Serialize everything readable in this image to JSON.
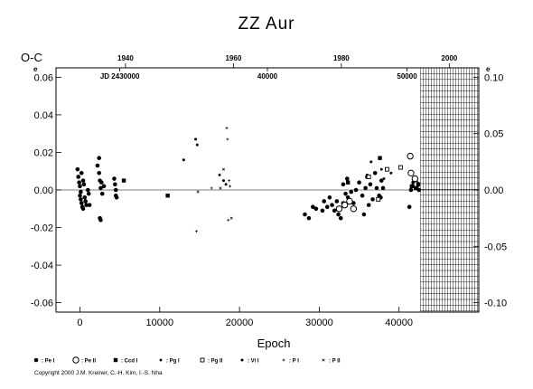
{
  "chart_data": {
    "type": "scatter",
    "title": "ZZ Aur",
    "xlabel": "Epoch",
    "ylabel": "O-C",
    "xlim": [
      -3000,
      50000
    ],
    "ylim": [
      -0.065,
      0.065
    ],
    "x_ticks": [
      "0",
      "10000",
      "20000",
      "30000",
      "40000"
    ],
    "x_tick_values": [
      0,
      10000,
      20000,
      30000,
      40000
    ],
    "y_ticks": [
      "-0.06",
      "-0.04",
      "-0.02",
      "0.00",
      "0.02",
      "0.04",
      "0.06"
    ],
    "y_tick_values": [
      -0.06,
      -0.04,
      -0.02,
      0.0,
      0.02,
      0.04,
      0.06
    ],
    "y2_ticks": [
      "-0.10",
      "-0.05",
      "0.00",
      "0.05",
      "0.10"
    ],
    "y2_tick_values": [
      -0.1,
      -0.05,
      0.0,
      0.05,
      0.1
    ],
    "y2_scale": 0.6,
    "top_years": [
      "1940",
      "1960",
      "1980",
      "2000"
    ],
    "top_year_epochs": [
      5710,
      19240,
      32770,
      46300
    ],
    "jd_labels": [
      "JD 2430000",
      "40000",
      "50000"
    ],
    "jd_label_epochs": [
      5000,
      23500,
      41000
    ],
    "y_exponent_mark": "e",
    "hatched_region": [
      42700,
      50000
    ],
    "zero_line": true,
    "series": [
      {
        "name": "Pe I",
        "marker": "filled-circle",
        "points": [
          [
            -300,
            0.011
          ],
          [
            -200,
            0.007
          ],
          [
            -100,
            0.004
          ],
          [
            0,
            0.002
          ],
          [
            100,
            -0.001
          ],
          [
            0,
            -0.003
          ],
          [
            100,
            -0.005
          ],
          [
            200,
            -0.007
          ],
          [
            300,
            -0.009
          ],
          [
            400,
            -0.01
          ],
          [
            200,
            0.009
          ],
          [
            400,
            0.005
          ],
          [
            500,
            0.003
          ],
          [
            600,
            -0.004
          ],
          [
            700,
            -0.006
          ],
          [
            800,
            -0.008
          ],
          [
            1000,
            0.0
          ],
          [
            1100,
            -0.002
          ],
          [
            1200,
            -0.008
          ],
          [
            2200,
            0.013
          ],
          [
            2400,
            0.017
          ],
          [
            2400,
            0.009
          ],
          [
            2500,
            0.005
          ],
          [
            2600,
            0.001
          ],
          [
            2700,
            0.004
          ],
          [
            2800,
            -0.002
          ],
          [
            3000,
            0.002
          ],
          [
            2500,
            -0.015
          ],
          [
            2600,
            -0.016
          ],
          [
            4300,
            0.006
          ],
          [
            4400,
            0.003
          ],
          [
            4500,
            0.0
          ],
          [
            4500,
            -0.003
          ],
          [
            4600,
            -0.004
          ],
          [
            28200,
            -0.013
          ],
          [
            28700,
            -0.015
          ],
          [
            29200,
            -0.009
          ],
          [
            29600,
            -0.01
          ],
          [
            30400,
            -0.011
          ],
          [
            30600,
            -0.006
          ],
          [
            31000,
            -0.009
          ],
          [
            31300,
            -0.004
          ],
          [
            31600,
            -0.008
          ],
          [
            31900,
            -0.011
          ],
          [
            32200,
            -0.006
          ],
          [
            32400,
            -0.013
          ],
          [
            32700,
            -0.015
          ],
          [
            33000,
            -0.007
          ],
          [
            33300,
            -0.002
          ],
          [
            33000,
            0.003
          ],
          [
            33500,
            0.006
          ],
          [
            33600,
            -0.004
          ],
          [
            34000,
            -0.001
          ],
          [
            34300,
            -0.007
          ],
          [
            34600,
            0.0
          ],
          [
            35000,
            0.004
          ],
          [
            35400,
            -0.003
          ],
          [
            35600,
            -0.013
          ],
          [
            35800,
            0.001
          ],
          [
            36000,
            0.007
          ],
          [
            36200,
            -0.008
          ],
          [
            36400,
            0.003
          ],
          [
            36700,
            -0.005
          ],
          [
            37000,
            0.009
          ],
          [
            37200,
            0.001
          ],
          [
            37500,
            -0.003
          ],
          [
            37800,
            0.005
          ],
          [
            38000,
            0.001
          ],
          [
            37700,
            -0.004
          ],
          [
            41500,
            0.0
          ],
          [
            41800,
            0.004
          ],
          [
            42000,
            0.002
          ],
          [
            42200,
            0.001
          ],
          [
            42400,
            0.003
          ],
          [
            42500,
            0.0
          ],
          [
            41300,
            -0.009
          ]
        ]
      },
      {
        "name": "Pe II",
        "marker": "open-circle",
        "points": [
          [
            32500,
            -0.01
          ],
          [
            33200,
            -0.008
          ],
          [
            33800,
            -0.006
          ],
          [
            34300,
            -0.01
          ],
          [
            41400,
            0.018
          ],
          [
            41500,
            0.009
          ],
          [
            42000,
            0.006
          ],
          [
            42200,
            0.003
          ]
        ]
      },
      {
        "name": "Ccd I",
        "marker": "filled-square",
        "points": [
          [
            5500,
            0.005
          ],
          [
            11000,
            -0.003
          ],
          [
            33600,
            0.004
          ],
          [
            37600,
            0.017
          ],
          [
            41600,
            0.002
          ],
          [
            42100,
            0.001
          ],
          [
            42400,
            0.003
          ]
        ]
      },
      {
        "name": "Pg I",
        "marker": "small-square",
        "points": [
          [
            36000,
            0.008
          ],
          [
            37800,
            0.011
          ],
          [
            38100,
            0.006
          ]
        ]
      },
      {
        "name": "Pg II",
        "marker": "open-square",
        "points": [
          [
            36200,
            0.007
          ],
          [
            37400,
            -0.005
          ],
          [
            38500,
            0.011
          ],
          [
            40200,
            0.012
          ]
        ]
      },
      {
        "name": "Vi I",
        "marker": "small-circle",
        "points": [
          [
            14500,
            0.027
          ],
          [
            14700,
            0.024
          ],
          [
            17500,
            0.008
          ],
          [
            18000,
            0.005
          ],
          [
            18300,
            0.003
          ],
          [
            13000,
            0.016
          ],
          [
            36500,
            0.015
          ],
          [
            39000,
            0.009
          ]
        ]
      },
      {
        "name": "P I",
        "marker": "plus",
        "points": [
          [
            14600,
            -0.022
          ],
          [
            18400,
            0.033
          ],
          [
            18500,
            0.027
          ],
          [
            18700,
            0.005
          ],
          [
            18800,
            0.002
          ],
          [
            16500,
            0.001
          ],
          [
            18600,
            -0.016
          ]
        ]
      },
      {
        "name": "P II",
        "marker": "cross",
        "points": [
          [
            17600,
            0.001
          ],
          [
            19000,
            -0.015
          ],
          [
            14800,
            -0.001
          ],
          [
            18000,
            0.011
          ]
        ]
      }
    ]
  },
  "legend": [
    {
      "symbol": "filled-circle",
      "label": ": Pe I"
    },
    {
      "symbol": "open-circle",
      "label": ": Pe II"
    },
    {
      "symbol": "filled-square",
      "label": ": Ccd I"
    },
    {
      "symbol": "small-square",
      "label": ": Pg I"
    },
    {
      "symbol": "open-square",
      "label": ": Pg II"
    },
    {
      "symbol": "small-circle",
      "label": ": Vi I"
    },
    {
      "symbol": "plus",
      "label": ": P I"
    },
    {
      "symbol": "cross",
      "label": ": P II"
    }
  ],
  "copyright": "Copyright 2000 J.M. Kreiner, C.-H. Kim, I.-S. Nha"
}
